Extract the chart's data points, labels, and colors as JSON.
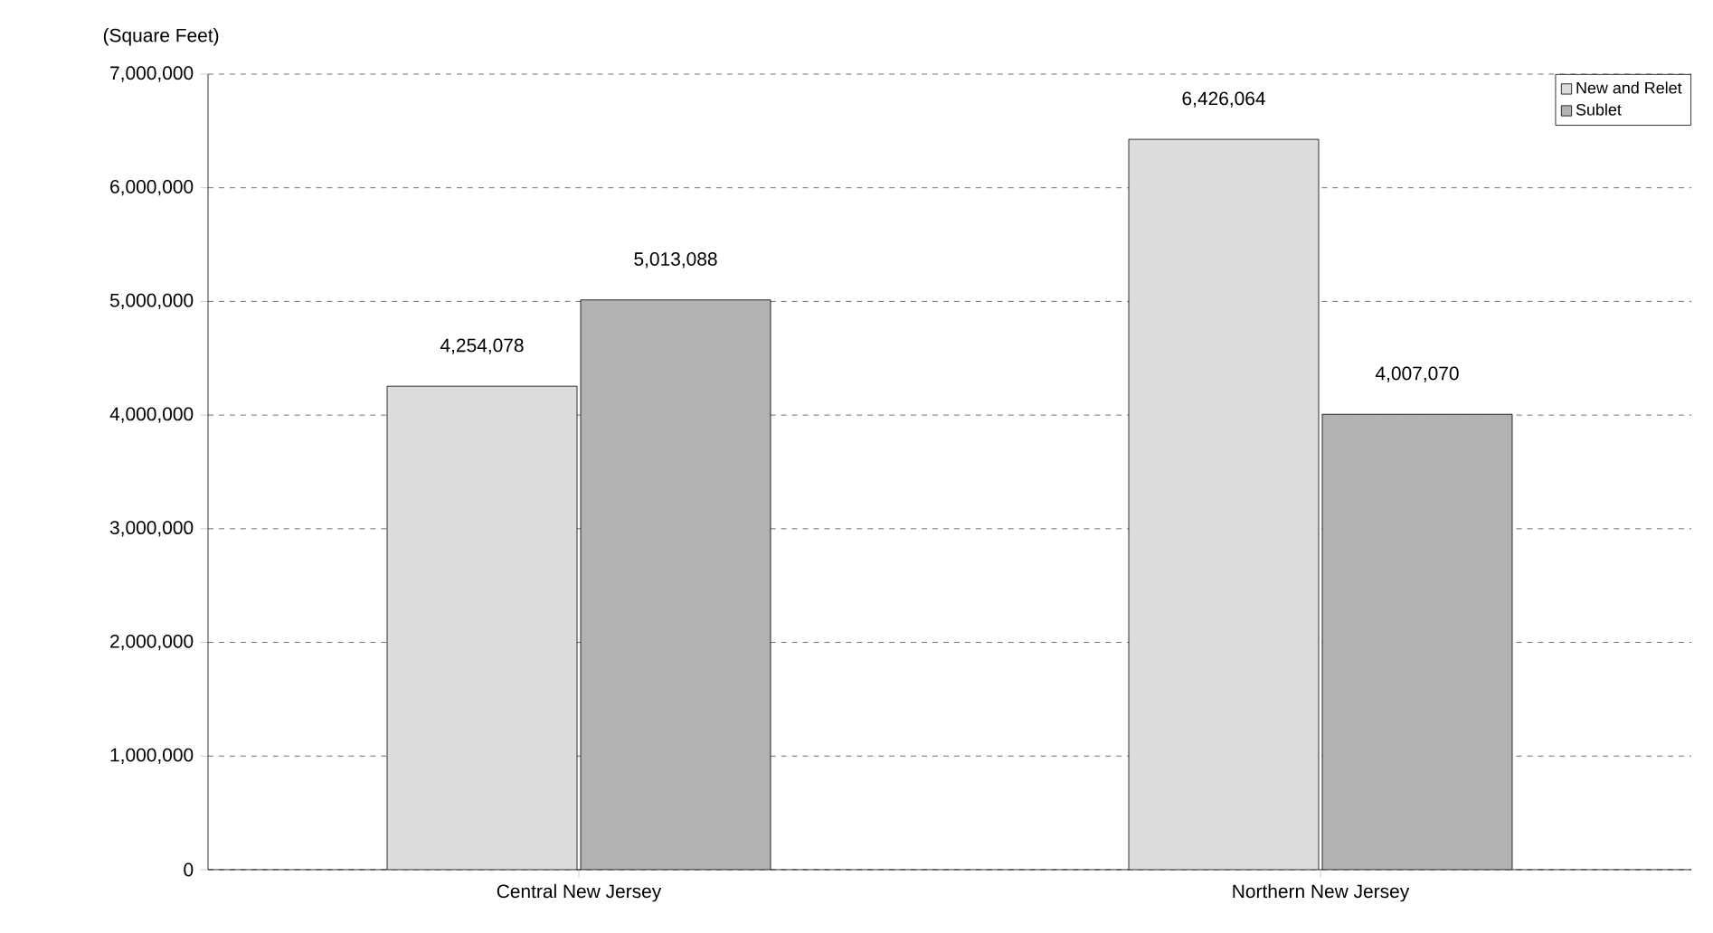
{
  "chart_data": {
    "type": "bar",
    "ylabel": "(Square Feet)",
    "categories": [
      "Central New Jersey",
      "Northern New Jersey"
    ],
    "series": [
      {
        "name": "New and Relet",
        "color": "#dcdcdc",
        "values": [
          4254078,
          6426064
        ],
        "value_labels": [
          "4,254,078",
          "6,426,064"
        ]
      },
      {
        "name": "Sublet",
        "color": "#b2b2b2",
        "values": [
          5013088,
          4007070
        ],
        "value_labels": [
          "5,013,088",
          "4,007,070"
        ]
      }
    ],
    "ylim": [
      0,
      7000000
    ],
    "yticks": [
      {
        "value": 0,
        "label": "0"
      },
      {
        "value": 1000000,
        "label": "1,000,000"
      },
      {
        "value": 2000000,
        "label": "2,000,000"
      },
      {
        "value": 3000000,
        "label": "3,000,000"
      },
      {
        "value": 4000000,
        "label": "4,000,000"
      },
      {
        "value": 5000000,
        "label": "5,000,000"
      },
      {
        "value": 6000000,
        "label": "6,000,000"
      },
      {
        "value": 7000000,
        "label": "7,000,000"
      }
    ],
    "grid": "y",
    "legend": "top right"
  }
}
